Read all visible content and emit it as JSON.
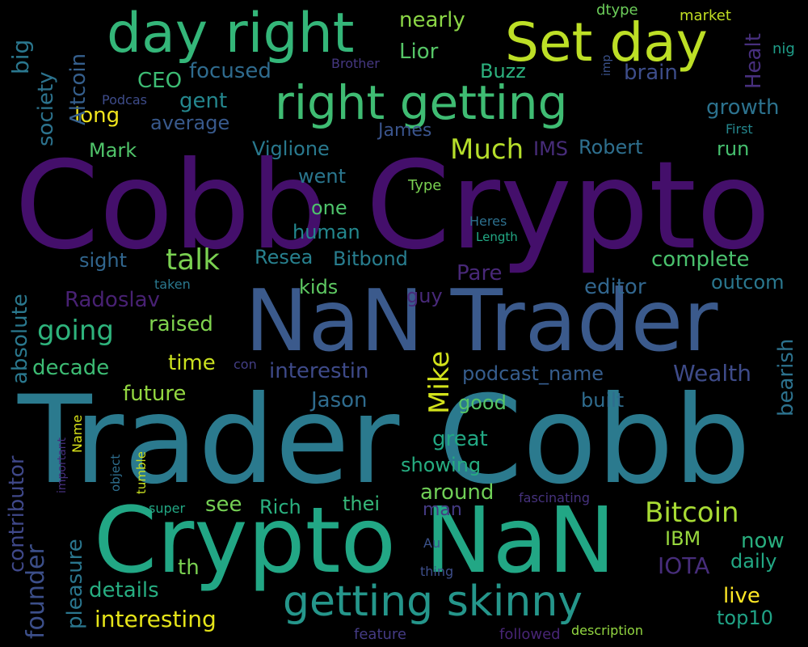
{
  "words": [
    {
      "text": "Cobb Crypto",
      "color": "#440f6b"
    },
    {
      "text": "Trader Cobb",
      "color": "#2b7a8e"
    },
    {
      "text": "NaN Trader",
      "color": "#3b5a8c"
    },
    {
      "text": "Crypto NaN",
      "color": "#22a785"
    },
    {
      "text": "day right",
      "color": "#34b679"
    },
    {
      "text": "Set day",
      "color": "#bddf26"
    },
    {
      "text": "right getting",
      "color": "#3fbc73"
    },
    {
      "text": "getting skinny",
      "color": "#25968b"
    },
    {
      "text": "Bitcoin",
      "color": "#a8db34"
    },
    {
      "text": "Much",
      "color": "#b5de2b"
    },
    {
      "text": "talk",
      "color": "#7ad151"
    },
    {
      "text": "Mike",
      "color": "#d2e21b"
    },
    {
      "text": "going",
      "color": "#2eb37c"
    },
    {
      "text": "founder",
      "color": "#3c4f8a"
    },
    {
      "text": "interesting",
      "color": "#e5e419"
    },
    {
      "text": "podcast_name",
      "color": "#365d8d"
    },
    {
      "text": "Wealth",
      "color": "#3e4b89"
    },
    {
      "text": "complete",
      "color": "#4ac16d"
    },
    {
      "text": "outcom",
      "color": "#2a778e"
    },
    {
      "text": "growth",
      "color": "#2c728e"
    },
    {
      "text": "Viglione",
      "color": "#29798e"
    },
    {
      "text": "Robert",
      "color": "#2e6f8e"
    },
    {
      "text": "Jason",
      "color": "#2f6c8e"
    },
    {
      "text": "editor",
      "color": "#31668e"
    },
    {
      "text": "Resea",
      "color": "#27808e"
    },
    {
      "text": "Bitbond",
      "color": "#287d8e"
    },
    {
      "text": "Radoslav",
      "color": "#482173"
    },
    {
      "text": "raised",
      "color": "#7fd34e"
    },
    {
      "text": "decade",
      "color": "#3dbc74"
    },
    {
      "text": "time",
      "color": "#cae11f"
    },
    {
      "text": "future",
      "color": "#93d741"
    },
    {
      "text": "interestin",
      "color": "#3e4a89"
    },
    {
      "text": "nearly",
      "color": "#8bd646"
    },
    {
      "text": "Lior",
      "color": "#56c667"
    },
    {
      "text": "Buzz",
      "color": "#2cb17e"
    },
    {
      "text": "focused",
      "color": "#2f6b8e"
    },
    {
      "text": "CEO",
      "color": "#3dbc74"
    },
    {
      "text": "gent",
      "color": "#24878e"
    },
    {
      "text": "long",
      "color": "#f1e51d"
    },
    {
      "text": "average",
      "color": "#38598c"
    },
    {
      "text": "Mark",
      "color": "#50c46a"
    },
    {
      "text": "James",
      "color": "#3a548c"
    },
    {
      "text": "IMS",
      "color": "#472c7a"
    },
    {
      "text": "brain",
      "color": "#3d4d8a"
    },
    {
      "text": "run",
      "color": "#46c06f"
    },
    {
      "text": "went",
      "color": "#2a768e"
    },
    {
      "text": "one",
      "color": "#4ec36b"
    },
    {
      "text": "human",
      "color": "#23888e"
    },
    {
      "text": "sight",
      "color": "#31668e"
    },
    {
      "text": "kids",
      "color": "#5ec962"
    },
    {
      "text": "Pare",
      "color": "#482878"
    },
    {
      "text": "guy",
      "color": "#482979"
    },
    {
      "text": "good",
      "color": "#56c667"
    },
    {
      "text": "built",
      "color": "#2f6c8e"
    },
    {
      "text": "great",
      "color": "#22a884"
    },
    {
      "text": "showing",
      "color": "#26ad81"
    },
    {
      "text": "around",
      "color": "#70cf57"
    },
    {
      "text": "man",
      "color": "#443a83"
    },
    {
      "text": "IBM",
      "color": "#98d83e"
    },
    {
      "text": "now",
      "color": "#29af7f"
    },
    {
      "text": "daily",
      "color": "#22a884"
    },
    {
      "text": "IOTA",
      "color": "#472d7b"
    },
    {
      "text": "live",
      "color": "#fde725"
    },
    {
      "text": "top10",
      "color": "#20a386"
    },
    {
      "text": "see",
      "color": "#75d054"
    },
    {
      "text": "Rich",
      "color": "#2ab07f"
    },
    {
      "text": "thei",
      "color": "#35b779"
    },
    {
      "text": "th",
      "color": "#7ad151"
    },
    {
      "text": "details",
      "color": "#27ad81"
    },
    {
      "text": "big",
      "color": "#2a778e"
    },
    {
      "text": "Altcoin",
      "color": "#355f8d"
    },
    {
      "text": "society",
      "color": "#2c738e"
    },
    {
      "text": "Healt",
      "color": "#472f7d"
    },
    {
      "text": "absolute",
      "color": "#2a788e"
    },
    {
      "text": "contributor",
      "color": "#3f4889"
    },
    {
      "text": "pleasure",
      "color": "#2a768e"
    },
    {
      "text": "bearish",
      "color": "#2c728e"
    },
    {
      "text": "dtype",
      "color": "#6ccd5a"
    },
    {
      "text": "market",
      "color": "#c2df23"
    },
    {
      "text": "nig",
      "color": "#1f9e89"
    },
    {
      "text": "imp",
      "color": "#3b528b"
    },
    {
      "text": "Brother",
      "color": "#453781"
    },
    {
      "text": "Podcas",
      "color": "#3e4c8a"
    },
    {
      "text": "First",
      "color": "#24878e"
    },
    {
      "text": "Type",
      "color": "#7ad151"
    },
    {
      "text": "Heres",
      "color": "#2d708e"
    },
    {
      "text": "Length",
      "color": "#22a884"
    },
    {
      "text": "taken",
      "color": "#2a788e"
    },
    {
      "text": "con",
      "color": "#433e85"
    },
    {
      "text": "super",
      "color": "#22a884"
    },
    {
      "text": "fascinating",
      "color": "#46327e"
    },
    {
      "text": "Au",
      "color": "#3b528b"
    },
    {
      "text": "thing",
      "color": "#3d4e8a"
    },
    {
      "text": "feature",
      "color": "#443b84"
    },
    {
      "text": "followed",
      "color": "#482576"
    },
    {
      "text": "description",
      "color": "#93d741"
    },
    {
      "text": "Name",
      "color": "#d8e219"
    },
    {
      "text": "important",
      "color": "#46307e"
    },
    {
      "text": "object",
      "color": "#2e6e8e"
    },
    {
      "text": "tumble",
      "color": "#c8e020"
    }
  ]
}
